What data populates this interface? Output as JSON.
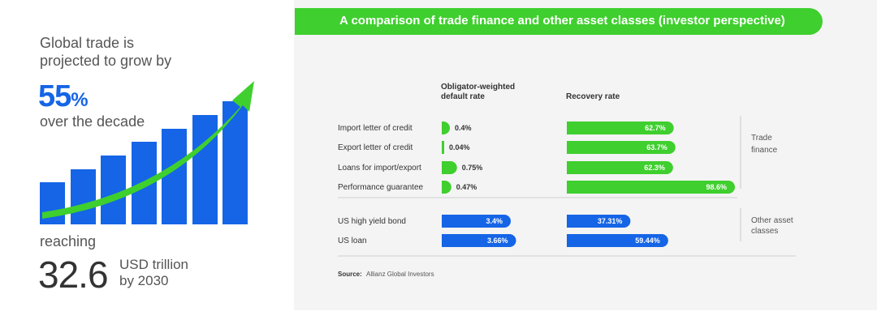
{
  "infographic": {
    "line1": "Global trade is",
    "line2": "projected to grow by",
    "growth_number": "55",
    "growth_unit": "%",
    "growth_period": "over the decade",
    "reaching": "reaching",
    "value_number": "32.6",
    "value_unit": "USD trillion",
    "value_year": "by 2030",
    "bar_color": "#1565e6",
    "arrow_color": "#3fcf2e"
  },
  "chart_data": {
    "type": "bar",
    "title": "A comparison of trade finance and other asset classes (investor perspective)",
    "column_headers": {
      "default": [
        "Obligator-weighted",
        "default rate"
      ],
      "recovery": "Recovery rate"
    },
    "categories": [
      "Import letter of credit",
      "Export letter of credit",
      "Loans for import/export",
      "Performance guarantee",
      "US high yield bond",
      "US loan"
    ],
    "series": [
      {
        "name": "Obligator-weighted default rate",
        "values": [
          0.4,
          0.04,
          0.75,
          0.47,
          3.4,
          3.66
        ],
        "labels": [
          "0.4%",
          "0.04%",
          "0.75%",
          "0.47%",
          "3.4%",
          "3.66%"
        ]
      },
      {
        "name": "Recovery rate",
        "values": [
          62.7,
          63.7,
          62.3,
          98.6,
          37.31,
          59.44
        ],
        "labels": [
          "62.7%",
          "63.7%",
          "62.3%",
          "98.6%",
          "37.31%",
          "59.44%"
        ]
      }
    ],
    "groups": [
      {
        "label": [
          "Trade",
          "finance"
        ],
        "color": "#3fcf2e"
      },
      {
        "label": [
          "Other asset",
          "classes"
        ],
        "color": "#1565e6"
      }
    ],
    "source_label": "Source:",
    "source_text": "Allianz Global Investors"
  }
}
